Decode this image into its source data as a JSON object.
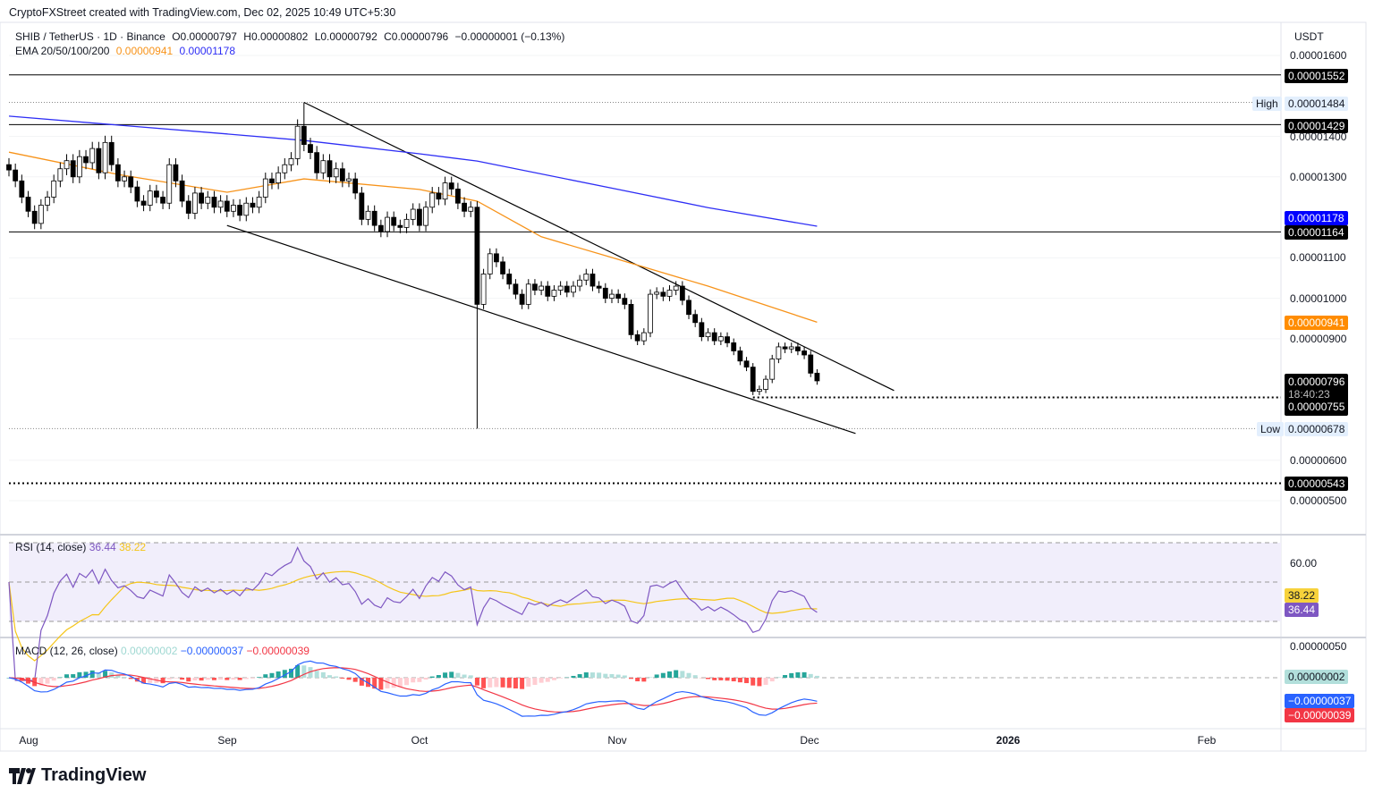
{
  "credit": "CryptoFXStreet created with TradingView.com, Dec 02, 2025 10:49 UTC+5:30",
  "legend": {
    "symbol": "SHIB / TetherUS · 1D · Binance",
    "open": "O0.00000797",
    "high": "H0.00000802",
    "low": "L0.00000792",
    "close": "C0.00000796",
    "change": "−0.00000001 (−0.13%)",
    "ema_label": "EMA 20/50/100/200",
    "ema50_value": "0.00000941",
    "ema200_value": "0.00001178"
  },
  "currency": "USDT",
  "price_axis_ticks": [
    "0.00001600",
    "0.00001400",
    "0.00001300",
    "0.00001100",
    "0.00001000",
    "0.00000900",
    "0.00000600",
    "0.00000500"
  ],
  "badges": {
    "level_1552": "0.00001552",
    "high_label": "High",
    "high_value": "0.00001484",
    "level_1429": "0.00001429",
    "ema200": "0.00001178",
    "level_1164": "0.00001164",
    "ema50": "0.00000941",
    "last_price": "0.00000796",
    "countdown": "18:40:23",
    "level_755": "0.00000755",
    "low_label": "Low",
    "low_value": "0.00000678",
    "level_543": "0.00000543"
  },
  "rsi": {
    "label": "RSI (14, close)",
    "value": "36.44",
    "ma_value": "38.22",
    "axis_tick": "60.00",
    "levels": [
      70,
      50,
      30
    ]
  },
  "macd": {
    "label": "MACD (12, 26, close)",
    "hist_value": "0.00000002",
    "macd_value": "−0.00000037",
    "signal_value": "−0.00000039",
    "axis_tick": "0.00000050"
  },
  "time_axis": [
    "Aug",
    "Sep",
    "Oct",
    "Nov",
    "Dec",
    "2026",
    "Feb"
  ],
  "brand": "TradingView",
  "colors": {
    "ema50": "#f7931a",
    "ema200": "#2e2ef5",
    "rsi": "#7e57c2",
    "rsi_ma": "#f5c518",
    "macd": "#2962ff",
    "signal": "#f23645",
    "hist_up": "#26a69a",
    "hist_down": "#ff5252"
  },
  "chart_data": {
    "type": "candlestick",
    "title": "SHIB / TetherUS · 1D · Binance",
    "start_date": "2025-07-29",
    "interval": "1D",
    "ylim": [
      4.6e-06,
      1.65e-05
    ],
    "close": [
      1.317e-05,
      1.29e-05,
      1.25e-05,
      1.215e-05,
      1.185e-05,
      1.23e-05,
      1.25e-05,
      1.29e-05,
      1.32e-05,
      1.34e-05,
      1.3e-05,
      1.35e-05,
      1.335e-05,
      1.37e-05,
      1.31e-05,
      1.385e-05,
      1.33e-05,
      1.29e-05,
      1.3e-05,
      1.275e-05,
      1.24e-05,
      1.23e-05,
      1.265e-05,
      1.25e-05,
      1.235e-05,
      1.33e-05,
      1.29e-05,
      1.24e-05,
      1.21e-05,
      1.26e-05,
      1.235e-05,
      1.25e-05,
      1.225e-05,
      1.24e-05,
      1.215e-05,
      1.23e-05,
      1.205e-05,
      1.235e-05,
      1.225e-05,
      1.25e-05,
      1.295e-05,
      1.285e-05,
      1.31e-05,
      1.33e-05,
      1.345e-05,
      1.425e-05,
      1.38e-05,
      1.36e-05,
      1.31e-05,
      1.34e-05,
      1.3e-05,
      1.32e-05,
      1.29e-05,
      1.295e-05,
      1.26e-05,
      1.195e-05,
      1.215e-05,
      1.18e-05,
      1.165e-05,
      1.2e-05,
      1.18e-05,
      1.175e-05,
      1.195e-05,
      1.22e-05,
      1.18e-05,
      1.225e-05,
      1.26e-05,
      1.245e-05,
      1.285e-05,
      1.27e-05,
      1.235e-05,
      1.215e-05,
      1.225e-05,
      9.85e-06,
      1.06e-05,
      1.11e-05,
      1.09e-05,
      1.06e-05,
      1.035e-05,
      1.01e-05,
      9.85e-06,
      1.035e-05,
      1.02e-05,
      1.03e-05,
      1.005e-05,
      1.02e-05,
      1.03e-05,
      1.015e-05,
      1.03e-05,
      1.045e-05,
      1.06e-05,
      1.03e-05,
      1.025e-05,
      1e-05,
      1.01e-05,
      1e-05,
      9.85e-06,
      9.1e-06,
      8.95e-06,
      9.15e-06,
      1.01e-05,
      1.015e-05,
      1.005e-05,
      1.02e-05,
      1.03e-05,
      9.95e-06,
      9.6e-06,
      9.4e-06,
      9.05e-06,
      9.15e-06,
      8.95e-06,
      9.05e-06,
      8.9e-06,
      8.7e-06,
      8.45e-06,
      8.3e-06,
      7.7e-06,
      7.75e-06,
      8e-06,
      8.5e-06,
      8.8e-06,
      8.75e-06,
      8.8e-06,
      8.7e-06,
      8.6e-06,
      8.15e-06,
      7.96e-06
    ],
    "extremes": {
      "high": {
        "date": "2025-09-13",
        "value": 1.484e-05
      },
      "low": {
        "date": "2025-10-10",
        "value": 6.78e-06
      }
    },
    "ema50": [
      [
        "2025-07-29",
        1.361e-05
      ],
      [
        "2025-08-15",
        1.306e-05
      ],
      [
        "2025-09-01",
        1.262e-05
      ],
      [
        "2025-09-13",
        1.295e-05
      ],
      [
        "2025-10-01",
        1.269e-05
      ],
      [
        "2025-10-10",
        1.24e-05
      ],
      [
        "2025-10-20",
        1.152e-05
      ],
      [
        "2025-11-01",
        1.096e-05
      ],
      [
        "2025-11-15",
        1.03e-05
      ],
      [
        "2025-12-02",
        9.41e-06
      ]
    ],
    "ema200": [
      [
        "2025-07-29",
        1.45e-05
      ],
      [
        "2025-09-01",
        1.406e-05
      ],
      [
        "2025-09-13",
        1.39e-05
      ],
      [
        "2025-10-01",
        1.357e-05
      ],
      [
        "2025-10-10",
        1.339e-05
      ],
      [
        "2025-11-01",
        1.269e-05
      ],
      [
        "2025-11-15",
        1.224e-05
      ],
      [
        "2025-12-02",
        1.178e-05
      ]
    ],
    "trendlines": [
      {
        "kind": "upper-wedge",
        "from": [
          "2025-09-13",
          1.484e-05
        ],
        "to": [
          "2025-12-14",
          7.72e-06
        ]
      },
      {
        "kind": "lower-wedge",
        "from": [
          "2025-09-01",
          1.18e-05
        ],
        "to": [
          "2025-12-08",
          6.66e-06
        ]
      }
    ],
    "horizontal_levels": [
      {
        "value": 1.552e-05,
        "style": "solid"
      },
      {
        "value": 1.429e-05,
        "style": "solid"
      },
      {
        "value": 1.164e-05,
        "style": "solid"
      },
      {
        "value": 7.55e-06,
        "style": "dotted",
        "from": "2025-11-22"
      },
      {
        "value": 5.43e-06,
        "style": "dotted"
      },
      {
        "value": 1.484e-05,
        "style": "thin-dotted"
      },
      {
        "value": 6.78e-06,
        "style": "thin-dotted"
      }
    ]
  }
}
